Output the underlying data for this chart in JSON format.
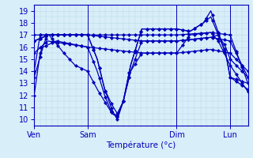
{
  "bg_color": "#d8eef8",
  "grid_color": "#b8d8e8",
  "line_color": "#0000bb",
  "xlabel": "Température (°c)",
  "ylim": [
    9.5,
    19.5
  ],
  "yticks": [
    10,
    11,
    12,
    13,
    14,
    15,
    16,
    17,
    18,
    19
  ],
  "xlim": [
    0,
    288
  ],
  "day_ticks": [
    0,
    72,
    192,
    264
  ],
  "day_labels": [
    "Ven",
    "Sam",
    "Dim",
    "Lun"
  ],
  "series": [
    [
      [
        0,
        12.0
      ],
      [
        8,
        15.5
      ],
      [
        18,
        17.0
      ],
      [
        72,
        17.0
      ],
      [
        85,
        15.0
      ],
      [
        95,
        12.5
      ],
      [
        105,
        10.8
      ],
      [
        112,
        10.0
      ],
      [
        120,
        11.5
      ],
      [
        130,
        14.5
      ],
      [
        145,
        17.5
      ],
      [
        192,
        17.5
      ],
      [
        210,
        17.3
      ],
      [
        228,
        18.0
      ],
      [
        238,
        19.0
      ],
      [
        248,
        17.2
      ],
      [
        258,
        15.5
      ],
      [
        264,
        13.5
      ],
      [
        288,
        12.5
      ]
    ],
    [
      [
        0,
        14.0
      ],
      [
        8,
        17.0
      ],
      [
        72,
        17.0
      ],
      [
        85,
        15.0
      ],
      [
        95,
        12.5
      ],
      [
        105,
        11.2
      ],
      [
        112,
        10.5
      ],
      [
        120,
        11.5
      ],
      [
        130,
        14.5
      ],
      [
        145,
        17.5
      ],
      [
        192,
        17.5
      ],
      [
        210,
        17.3
      ],
      [
        228,
        18.0
      ],
      [
        238,
        18.5
      ],
      [
        248,
        17.0
      ],
      [
        258,
        15.5
      ],
      [
        264,
        13.5
      ],
      [
        288,
        13.0
      ]
    ],
    [
      [
        0,
        17.0
      ],
      [
        18,
        17.0
      ],
      [
        72,
        17.0
      ],
      [
        145,
        17.0
      ],
      [
        192,
        17.0
      ],
      [
        238,
        17.2
      ],
      [
        264,
        17.0
      ],
      [
        288,
        13.0
      ]
    ],
    [
      [
        0,
        16.5
      ],
      [
        18,
        17.0
      ],
      [
        72,
        17.0
      ],
      [
        145,
        16.5
      ],
      [
        192,
        16.5
      ],
      [
        238,
        16.8
      ],
      [
        264,
        16.5
      ],
      [
        288,
        13.5
      ]
    ],
    [
      [
        0,
        15.5
      ],
      [
        18,
        16.5
      ],
      [
        72,
        16.0
      ],
      [
        145,
        15.5
      ],
      [
        192,
        15.5
      ],
      [
        238,
        15.8
      ],
      [
        264,
        15.5
      ],
      [
        288,
        14.0
      ]
    ],
    [
      [
        0,
        13.5
      ],
      [
        12,
        16.0
      ],
      [
        30,
        16.5
      ],
      [
        72,
        16.0
      ],
      [
        85,
        14.0
      ],
      [
        95,
        12.0
      ],
      [
        105,
        10.5
      ],
      [
        112,
        10.2
      ],
      [
        120,
        11.5
      ],
      [
        130,
        14.0
      ],
      [
        145,
        15.5
      ],
      [
        192,
        15.5
      ],
      [
        210,
        17.0
      ],
      [
        238,
        17.2
      ],
      [
        248,
        16.5
      ],
      [
        264,
        14.5
      ],
      [
        288,
        12.3
      ]
    ],
    [
      [
        0,
        16.5
      ],
      [
        20,
        17.0
      ],
      [
        40,
        15.5
      ],
      [
        55,
        14.5
      ],
      [
        72,
        14.0
      ],
      [
        85,
        12.5
      ],
      [
        95,
        11.5
      ],
      [
        105,
        10.5
      ],
      [
        112,
        10.3
      ],
      [
        120,
        11.5
      ],
      [
        130,
        14.0
      ],
      [
        145,
        16.5
      ],
      [
        192,
        16.5
      ],
      [
        238,
        16.8
      ],
      [
        248,
        17.0
      ],
      [
        258,
        16.0
      ],
      [
        264,
        15.0
      ],
      [
        288,
        13.5
      ]
    ]
  ]
}
